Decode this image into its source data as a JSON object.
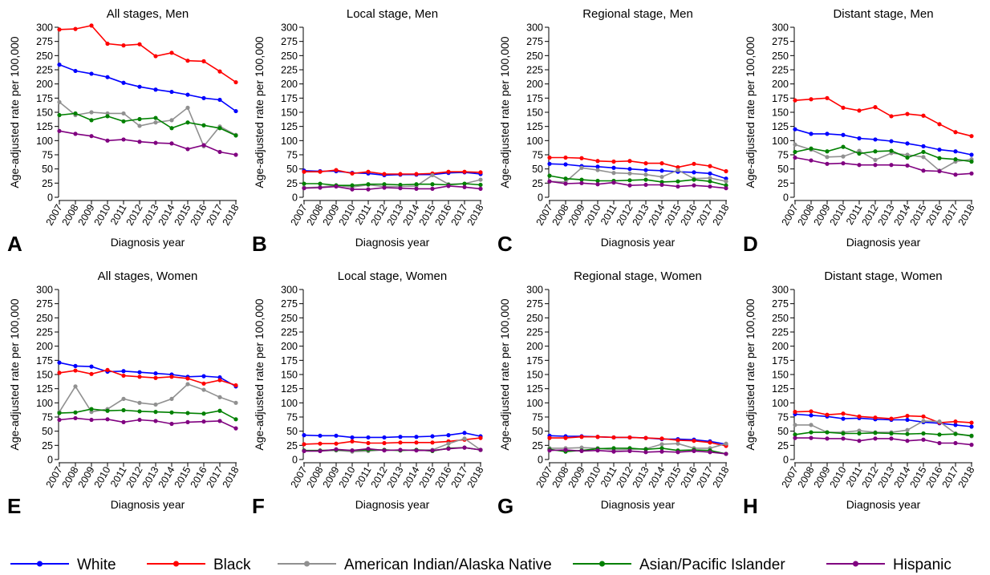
{
  "colors": {
    "White": "#0000ff",
    "Black": "#ff0000",
    "American Indian/Alaska Native": "#909090",
    "Asian/Pacific Islander": "#008000",
    "Hispanic": "#800080"
  },
  "legend": {
    "placement": "bottom",
    "items": [
      "White",
      "Black",
      "American Indian/Alaska Native",
      "Asian/Pacific Islander",
      "Hispanic"
    ]
  },
  "chart_data": [
    {
      "type": "line",
      "panel": "A",
      "title": "All stages, Men",
      "xlabel": "Diagnosis year",
      "ylabel": "Age-adjusted rate per 100,000",
      "x": [
        "2007",
        "2008",
        "2009",
        "2010",
        "2011",
        "2012",
        "2013",
        "2014",
        "2015",
        "2016",
        "2017",
        "2018"
      ],
      "ylim": [
        0,
        300
      ],
      "yticks": [
        0,
        25,
        50,
        75,
        100,
        125,
        150,
        175,
        200,
        225,
        250,
        275,
        300
      ],
      "grid": false,
      "series": [
        {
          "name": "White",
          "values": [
            234,
            223,
            218,
            212,
            202,
            195,
            190,
            186,
            181,
            175,
            172,
            152
          ]
        },
        {
          "name": "Black",
          "values": [
            296,
            297,
            303,
            271,
            268,
            270,
            249,
            255,
            241,
            240,
            222,
            203
          ]
        },
        {
          "name": "American Indian/Alaska Native",
          "values": [
            168,
            145,
            150,
            148,
            148,
            126,
            132,
            136,
            158,
            90,
            125,
            110
          ]
        },
        {
          "name": "Asian/Pacific Islander",
          "values": [
            145,
            148,
            136,
            143,
            134,
            138,
            140,
            122,
            132,
            127,
            122,
            109
          ]
        },
        {
          "name": "Hispanic",
          "values": [
            117,
            112,
            108,
            100,
            102,
            98,
            96,
            95,
            85,
            92,
            80,
            75
          ]
        }
      ]
    },
    {
      "type": "line",
      "panel": "B",
      "title": "Local stage, Men",
      "xlabel": "Diagnosis year",
      "ylabel": "Age-adjusted rate per 100,000",
      "x": [
        "2007",
        "2008",
        "2009",
        "2010",
        "2011",
        "2012",
        "2013",
        "2014",
        "2015",
        "2016",
        "2017",
        "2018"
      ],
      "ylim": [
        0,
        300
      ],
      "yticks": [
        0,
        25,
        50,
        75,
        100,
        125,
        150,
        175,
        200,
        225,
        250,
        275,
        300
      ],
      "grid": false,
      "series": [
        {
          "name": "White",
          "values": [
            47,
            46,
            46,
            43,
            42,
            39,
            40,
            40,
            40,
            43,
            44,
            41
          ]
        },
        {
          "name": "Black",
          "values": [
            45,
            45,
            48,
            42,
            45,
            41,
            41,
            41,
            42,
            45,
            45,
            44
          ]
        },
        {
          "name": "American Indian/Alaska Native",
          "values": [
            17,
            18,
            21,
            18,
            22,
            19,
            19,
            20,
            39,
            23,
            24,
            31
          ]
        },
        {
          "name": "Asian/Pacific Islander",
          "values": [
            24,
            24,
            21,
            21,
            23,
            23,
            22,
            23,
            23,
            22,
            24,
            22
          ]
        },
        {
          "name": "Hispanic",
          "values": [
            16,
            17,
            19,
            14,
            14,
            17,
            16,
            15,
            15,
            20,
            18,
            15
          ]
        }
      ]
    },
    {
      "type": "line",
      "panel": "C",
      "title": "Regional stage, Men",
      "xlabel": "Diagnosis year",
      "ylabel": "Age-adjusted rate per 100,000",
      "x": [
        "2007",
        "2008",
        "2009",
        "2010",
        "2011",
        "2012",
        "2013",
        "2014",
        "2015",
        "2016",
        "2017",
        "2018"
      ],
      "ylim": [
        0,
        300
      ],
      "yticks": [
        0,
        25,
        50,
        75,
        100,
        125,
        150,
        175,
        200,
        225,
        250,
        275,
        300
      ],
      "grid": false,
      "series": [
        {
          "name": "White",
          "values": [
            59,
            58,
            55,
            54,
            52,
            50,
            48,
            47,
            45,
            44,
            42,
            33
          ]
        },
        {
          "name": "Black",
          "values": [
            70,
            70,
            69,
            64,
            63,
            64,
            60,
            60,
            53,
            59,
            55,
            46
          ]
        },
        {
          "name": "American Indian/Alaska Native",
          "values": [
            28,
            27,
            52,
            48,
            43,
            42,
            40,
            36,
            48,
            33,
            34,
            28
          ]
        },
        {
          "name": "Asian/Pacific Islander",
          "values": [
            38,
            33,
            31,
            29,
            29,
            30,
            31,
            27,
            28,
            31,
            28,
            21
          ]
        },
        {
          "name": "Hispanic",
          "values": [
            28,
            24,
            25,
            23,
            26,
            21,
            22,
            22,
            19,
            21,
            19,
            16
          ]
        }
      ]
    },
    {
      "type": "line",
      "panel": "D",
      "title": "Distant stage, Men",
      "xlabel": "Diagnosis year",
      "ylabel": "Age-adjusted rate per 100,000",
      "x": [
        "2007",
        "2008",
        "2009",
        "2010",
        "2011",
        "2012",
        "2013",
        "2014",
        "2015",
        "2016",
        "2017",
        "2018"
      ],
      "ylim": [
        0,
        300
      ],
      "yticks": [
        0,
        25,
        50,
        75,
        100,
        125,
        150,
        175,
        200,
        225,
        250,
        275,
        300
      ],
      "grid": false,
      "series": [
        {
          "name": "White",
          "values": [
            120,
            112,
            112,
            110,
            104,
            102,
            99,
            95,
            90,
            84,
            81,
            75
          ]
        },
        {
          "name": "Black",
          "values": [
            171,
            173,
            175,
            158,
            153,
            159,
            143,
            147,
            144,
            129,
            115,
            108
          ]
        },
        {
          "name": "American Indian/Alaska Native",
          "values": [
            93,
            84,
            71,
            72,
            82,
            66,
            78,
            75,
            71,
            47,
            63,
            67
          ]
        },
        {
          "name": "Asian/Pacific Islander",
          "values": [
            80,
            86,
            81,
            89,
            77,
            81,
            82,
            70,
            80,
            69,
            67,
            63
          ]
        },
        {
          "name": "Hispanic",
          "values": [
            70,
            65,
            59,
            60,
            57,
            57,
            57,
            56,
            47,
            46,
            40,
            42
          ]
        }
      ]
    },
    {
      "type": "line",
      "panel": "E",
      "title": "All stages, Women",
      "xlabel": "Diagnosis year",
      "ylabel": "Age-adjusted rate per 100,000",
      "x": [
        "2007",
        "2008",
        "2009",
        "2010",
        "2011",
        "2012",
        "2013",
        "2014",
        "2015",
        "2016",
        "2017",
        "2018"
      ],
      "ylim": [
        0,
        300
      ],
      "yticks": [
        0,
        25,
        50,
        75,
        100,
        125,
        150,
        175,
        200,
        225,
        250,
        275,
        300
      ],
      "grid": false,
      "series": [
        {
          "name": "White",
          "values": [
            171,
            165,
            164,
            155,
            156,
            154,
            152,
            150,
            146,
            147,
            145,
            129
          ]
        },
        {
          "name": "Black",
          "values": [
            153,
            157,
            151,
            158,
            148,
            146,
            144,
            146,
            143,
            134,
            140,
            131
          ]
        },
        {
          "name": "American Indian/Alaska Native",
          "values": [
            84,
            129,
            84,
            89,
            107,
            100,
            97,
            107,
            133,
            123,
            110,
            100
          ]
        },
        {
          "name": "Asian/Pacific Islander",
          "values": [
            82,
            83,
            89,
            86,
            87,
            85,
            84,
            83,
            82,
            81,
            86,
            71
          ]
        },
        {
          "name": "Hispanic",
          "values": [
            70,
            73,
            70,
            71,
            66,
            70,
            68,
            63,
            66,
            67,
            68,
            55
          ]
        }
      ]
    },
    {
      "type": "line",
      "panel": "F",
      "title": "Local stage, Women",
      "xlabel": "Diagnosis year",
      "ylabel": "Age-adjusted rate per 100,000",
      "x": [
        "2007",
        "2008",
        "2009",
        "2010",
        "2011",
        "2012",
        "2013",
        "2014",
        "2015",
        "2016",
        "2017",
        "2018"
      ],
      "ylim": [
        0,
        300
      ],
      "yticks": [
        0,
        25,
        50,
        75,
        100,
        125,
        150,
        175,
        200,
        225,
        250,
        275,
        300
      ],
      "grid": false,
      "series": [
        {
          "name": "White",
          "values": [
            43,
            42,
            42,
            39,
            39,
            39,
            40,
            40,
            41,
            43,
            47,
            41
          ]
        },
        {
          "name": "Black",
          "values": [
            27,
            28,
            28,
            32,
            29,
            29,
            30,
            30,
            30,
            32,
            35,
            38
          ]
        },
        {
          "name": "American Indian/Alaska Native",
          "values": [
            15,
            15,
            16,
            14,
            15,
            17,
            16,
            17,
            17,
            28,
            37,
            17
          ]
        },
        {
          "name": "Asian/Pacific Islander",
          "values": [
            16,
            16,
            17,
            16,
            17,
            17,
            16,
            17,
            15,
            20,
            21,
            17
          ]
        },
        {
          "name": "Hispanic",
          "values": [
            15,
            15,
            18,
            16,
            19,
            16,
            17,
            16,
            16,
            19,
            21,
            17
          ]
        }
      ]
    },
    {
      "type": "line",
      "panel": "G",
      "title": "Regional stage, Women",
      "xlabel": "Diagnosis year",
      "ylabel": "Age-adjusted rate per 100,000",
      "x": [
        "2007",
        "2008",
        "2009",
        "2010",
        "2011",
        "2012",
        "2013",
        "2014",
        "2015",
        "2016",
        "2017",
        "2018"
      ],
      "ylim": [
        0,
        300
      ],
      "yticks": [
        0,
        25,
        50,
        75,
        100,
        125,
        150,
        175,
        200,
        225,
        250,
        275,
        300
      ],
      "grid": false,
      "series": [
        {
          "name": "White",
          "values": [
            42,
            41,
            41,
            40,
            39,
            39,
            38,
            36,
            36,
            35,
            32,
            27
          ]
        },
        {
          "name": "Black",
          "values": [
            38,
            38,
            40,
            40,
            39,
            39,
            38,
            37,
            34,
            33,
            30,
            24
          ]
        },
        {
          "name": "American Indian/Alaska Native",
          "values": [
            20,
            20,
            21,
            20,
            17,
            18,
            19,
            27,
            28,
            20,
            20,
            28
          ]
        },
        {
          "name": "Asian/Pacific Islander",
          "values": [
            18,
            14,
            16,
            19,
            20,
            20,
            18,
            20,
            16,
            17,
            16,
            10
          ]
        },
        {
          "name": "Hispanic",
          "values": [
            16,
            17,
            15,
            16,
            14,
            15,
            13,
            14,
            13,
            15,
            13,
            10
          ]
        }
      ]
    },
    {
      "type": "line",
      "panel": "H",
      "title": "Distant stage, Women",
      "xlabel": "Diagnosis year",
      "ylabel": "Age-adjusted rate per 100,000",
      "x": [
        "2007",
        "2008",
        "2009",
        "2010",
        "2011",
        "2012",
        "2013",
        "2014",
        "2015",
        "2016",
        "2017",
        "2018"
      ],
      "ylim": [
        0,
        300
      ],
      "yticks": [
        0,
        25,
        50,
        75,
        100,
        125,
        150,
        175,
        200,
        225,
        250,
        275,
        300
      ],
      "grid": false,
      "series": [
        {
          "name": "White",
          "values": [
            80,
            78,
            76,
            72,
            73,
            71,
            70,
            70,
            66,
            64,
            61,
            58
          ]
        },
        {
          "name": "Black",
          "values": [
            84,
            85,
            79,
            81,
            76,
            74,
            72,
            77,
            76,
            65,
            67,
            65
          ]
        },
        {
          "name": "American Indian/Alaska Native",
          "values": [
            61,
            61,
            48,
            48,
            51,
            48,
            48,
            52,
            68,
            67,
            46,
            41
          ]
        },
        {
          "name": "Asian/Pacific Islander",
          "values": [
            44,
            48,
            48,
            46,
            46,
            47,
            46,
            45,
            46,
            44,
            45,
            42
          ]
        },
        {
          "name": "Hispanic",
          "values": [
            38,
            38,
            37,
            37,
            33,
            37,
            37,
            33,
            35,
            29,
            29,
            26
          ]
        }
      ]
    }
  ]
}
